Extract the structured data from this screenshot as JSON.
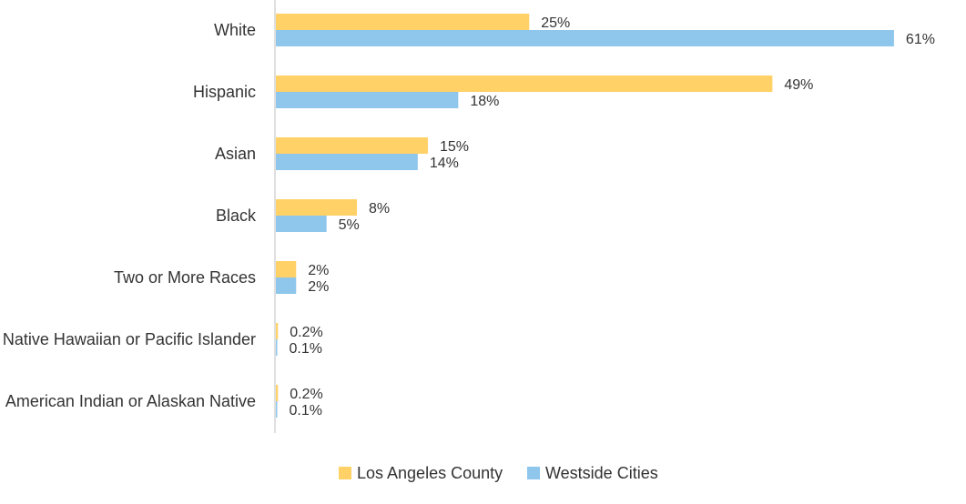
{
  "chart_data": {
    "type": "bar",
    "orientation": "horizontal",
    "title": "",
    "xlabel": "",
    "ylabel": "",
    "xlim": [
      0,
      61
    ],
    "grid": false,
    "legend_position": "bottom",
    "categories": [
      "White",
      "Hispanic",
      "Asian",
      "Black",
      "Two or More Races",
      "Native Hawaiian or Pacific Islander",
      "American Indian or Alaskan Native"
    ],
    "series": [
      {
        "name": "Los Angeles County",
        "color": "#FFD166",
        "values": [
          25,
          49,
          15,
          8,
          2,
          0.2,
          0.2
        ],
        "labels": [
          "25%",
          "49%",
          "15%",
          "8%",
          "2%",
          "0.2%",
          "0.2%"
        ]
      },
      {
        "name": "Westside Cities",
        "color": "#8EC6EC",
        "values": [
          61,
          18,
          14,
          5,
          2,
          0.1,
          0.1
        ],
        "labels": [
          "61%",
          "18%",
          "14%",
          "5%",
          "2%",
          "0.1%",
          "0.1%"
        ]
      }
    ]
  },
  "colors": {
    "axis": "#BFBFBF",
    "text": "#333333"
  }
}
